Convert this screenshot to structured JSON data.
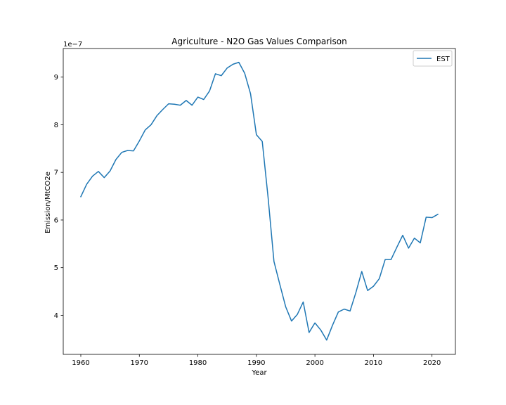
{
  "chart_data": {
    "type": "line",
    "title": "Agriculture - N2O Gas Values Comparison",
    "xlabel": "Year",
    "ylabel": "Emission/MtCO2e",
    "y_offset_label": "1e−7",
    "xlim": [
      1957,
      2024
    ],
    "ylim": [
      3.18,
      9.6
    ],
    "x_ticks": [
      1960,
      1970,
      1980,
      1990,
      2000,
      2010,
      2020
    ],
    "y_ticks": [
      4,
      5,
      6,
      7,
      8,
      9
    ],
    "grid": false,
    "legend_position": "top-right",
    "series_color": "#1f77b4",
    "series": [
      {
        "name": "EST",
        "x": [
          1960,
          1961,
          1962,
          1963,
          1964,
          1965,
          1966,
          1967,
          1968,
          1969,
          1970,
          1971,
          1972,
          1973,
          1974,
          1975,
          1976,
          1977,
          1978,
          1979,
          1980,
          1981,
          1982,
          1983,
          1984,
          1985,
          1986,
          1987,
          1988,
          1989,
          1990,
          1991,
          1992,
          1993,
          1994,
          1995,
          1996,
          1997,
          1998,
          1999,
          2000,
          2001,
          2002,
          2003,
          2004,
          2005,
          2006,
          2007,
          2008,
          2009,
          2010,
          2011,
          2012,
          2013,
          2014,
          2015,
          2016,
          2017,
          2018,
          2019,
          2020,
          2021
        ],
        "values": [
          6.49,
          6.75,
          6.92,
          7.02,
          6.89,
          7.03,
          7.27,
          7.42,
          7.46,
          7.45,
          7.66,
          7.89,
          8.0,
          8.19,
          8.32,
          8.44,
          8.43,
          8.41,
          8.51,
          8.41,
          8.58,
          8.53,
          8.71,
          9.07,
          9.03,
          9.19,
          9.27,
          9.31,
          9.08,
          8.65,
          7.79,
          7.65,
          6.47,
          5.13,
          4.65,
          4.18,
          3.88,
          4.02,
          4.28,
          3.64,
          3.84,
          3.69,
          3.48,
          3.79,
          4.07,
          4.13,
          4.09,
          4.48,
          4.92,
          4.52,
          4.61,
          4.77,
          5.17,
          5.17,
          5.43,
          5.68,
          5.41,
          5.62,
          5.52,
          6.06,
          6.05,
          6.12
        ]
      }
    ]
  }
}
